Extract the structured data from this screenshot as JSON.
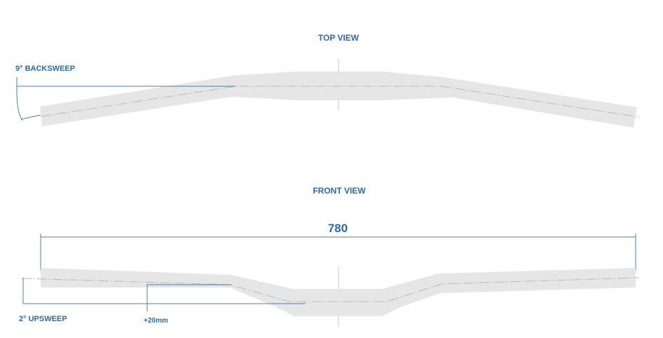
{
  "top_view": {
    "title": "TOP VIEW",
    "backsweep_label": "9° BACKSWEEP"
  },
  "front_view": {
    "title": "FRONT VIEW",
    "width_label": "780",
    "upsweep_label": "2° UPSWEEP",
    "rise_label": "+20mm"
  },
  "colors": {
    "label": "#2c6aa3",
    "bar_fill": "#e6e6e6",
    "dimension_line": "#4a7fb0",
    "centerline": "#b9b9b9"
  }
}
